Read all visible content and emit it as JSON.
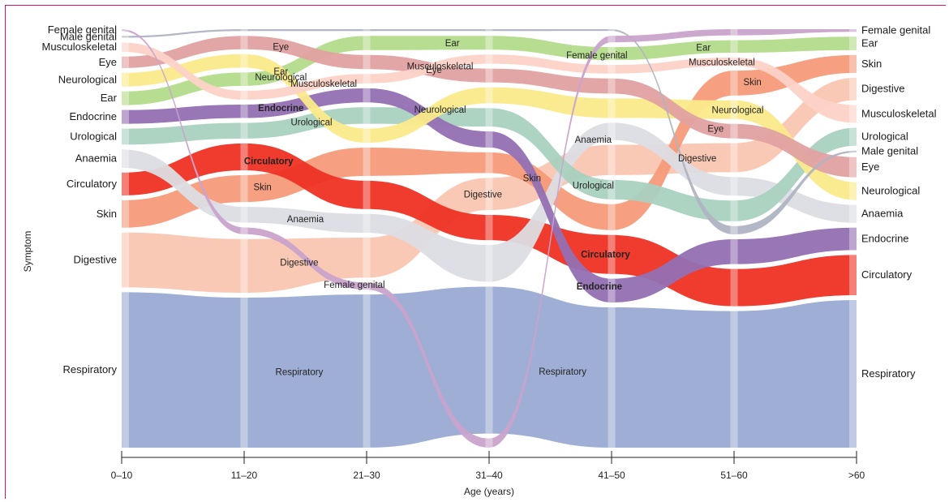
{
  "chart_data": {
    "type": "alluvial",
    "xlabel": "Age (years)",
    "ylabel": "Symptom",
    "categories": [
      "0–10",
      "11–20",
      "21–30",
      "31–40",
      "41–50",
      "51–60",
      ">60"
    ],
    "series": [
      {
        "name": "Respiratory",
        "color": "#9aaad3",
        "share": [
          0.34,
          0.335,
          0.325,
          0.32,
          0.325,
          0.33,
          0.33
        ],
        "rank": [
          13,
          13,
          13,
          13,
          13,
          13,
          13
        ]
      },
      {
        "name": "Digestive",
        "color": "#f9c6b1",
        "share": [
          0.12,
          0.12,
          0.085,
          0.07,
          0.07,
          0.07,
          0.05
        ],
        "rank": [
          12,
          12,
          11,
          10,
          8,
          7,
          4
        ]
      },
      {
        "name": "Skin",
        "color": "#f59b7a",
        "share": [
          0.06,
          0.06,
          0.06,
          0.045,
          0.06,
          0.06,
          0.04
        ],
        "rank": [
          11,
          8,
          8,
          9,
          10,
          4,
          3
        ]
      },
      {
        "name": "Circulatory",
        "color": "#ee3124",
        "share": [
          0.05,
          0.06,
          0.06,
          0.055,
          0.09,
          0.09,
          0.09
        ],
        "rank": [
          10,
          7,
          9,
          11,
          11,
          12,
          12
        ]
      },
      {
        "name": "Anaemia",
        "color": "#dcdde3",
        "share": [
          0.04,
          0.035,
          0.04,
          0.08,
          0.04,
          0.045,
          0.04
        ],
        "rank": [
          9,
          10,
          10,
          12,
          7,
          8,
          10
        ]
      },
      {
        "name": "Urological",
        "color": "#a9d1bf",
        "share": [
          0.035,
          0.035,
          0.035,
          0.04,
          0.045,
          0.05,
          0.04
        ],
        "rank": [
          8,
          6,
          6,
          7,
          9,
          9,
          6
        ]
      },
      {
        "name": "Endocrine",
        "color": "#9470b3",
        "share": [
          0.03,
          0.03,
          0.03,
          0.035,
          0.055,
          0.06,
          0.05
        ],
        "rank": [
          7,
          5,
          5,
          8,
          12,
          11,
          11
        ]
      },
      {
        "name": "Ear",
        "color": "#b3db8b",
        "share": [
          0.03,
          0.03,
          0.03,
          0.03,
          0.03,
          0.03,
          0.03
        ],
        "rank": [
          6,
          3,
          2,
          2,
          3,
          2,
          2
        ]
      },
      {
        "name": "Neurological",
        "color": "#fbea8a",
        "share": [
          0.03,
          0.03,
          0.03,
          0.035,
          0.045,
          0.045,
          0.04
        ],
        "rank": [
          5,
          2,
          7,
          6,
          6,
          5,
          9
        ]
      },
      {
        "name": "Eye",
        "color": "#e2a1a1",
        "share": [
          0.025,
          0.03,
          0.03,
          0.03,
          0.035,
          0.035,
          0.045
        ],
        "rank": [
          4,
          1,
          3,
          4,
          5,
          6,
          8
        ]
      },
      {
        "name": "Musculoskeletal",
        "color": "#fcd2c7",
        "share": [
          0.02,
          0.02,
          0.02,
          0.02,
          0.02,
          0.02,
          0.04
        ],
        "rank": [
          3,
          4,
          4,
          3,
          4,
          3,
          5
        ]
      },
      {
        "name": "Male genital",
        "color": "#b0b3c2",
        "share": [
          0.004,
          0.004,
          0.004,
          0.004,
          0.004,
          0.02,
          0.004
        ],
        "rank": [
          2,
          0,
          0,
          0,
          0,
          10,
          7
        ]
      },
      {
        "name": "Female genital",
        "color": "#c9a3cc",
        "share": [
          0.004,
          0.015,
          0.015,
          0.02,
          0.015,
          0.015,
          0.006
        ],
        "rank": [
          1,
          11,
          12,
          14,
          2,
          1,
          1
        ]
      }
    ],
    "flow_labels": [
      {
        "text": "Eye",
        "series": "Eye",
        "t": 1.3
      },
      {
        "text": "Neurological",
        "series": "Neurological",
        "t": 1.3
      },
      {
        "text": "Ear",
        "series": "Ear",
        "t": 1.3
      },
      {
        "text": "Musculoskeletal",
        "series": "Musculoskeletal",
        "t": 1.65
      },
      {
        "text": "Endocrine",
        "series": "Endocrine",
        "t": 1.3
      },
      {
        "text": "Urological",
        "series": "Urological",
        "t": 1.55
      },
      {
        "text": "Circulatory",
        "series": "Circulatory",
        "t": 1.2
      },
      {
        "text": "Skin",
        "series": "Skin",
        "t": 1.15
      },
      {
        "text": "Anaemia",
        "series": "Anaemia",
        "t": 1.5
      },
      {
        "text": "Female genital",
        "series": "Female genital",
        "t": 1.9
      },
      {
        "text": "Digestive",
        "series": "Digestive",
        "t": 1.45
      },
      {
        "text": "Ear",
        "series": "Ear",
        "t": 2.7
      },
      {
        "text": "Eye",
        "series": "Eye",
        "t": 2.55
      },
      {
        "text": "Musculoskeletal",
        "series": "Musculoskeletal",
        "t": 2.6
      },
      {
        "text": "Neurological",
        "series": "Neurological",
        "t": 2.6
      },
      {
        "text": "Digestive",
        "series": "Digestive",
        "t": 2.95
      },
      {
        "text": "Skin",
        "series": "Skin",
        "t": 3.35
      },
      {
        "text": "Female genital",
        "series": "Female genital",
        "t": 3.88
      },
      {
        "text": "Anaemia",
        "series": "Anaemia",
        "t": 3.85
      },
      {
        "text": "Urological",
        "series": "Urological",
        "t": 3.85
      },
      {
        "text": "Circulatory",
        "series": "Circulatory",
        "t": 3.95
      },
      {
        "text": "Endocrine",
        "series": "Endocrine",
        "t": 3.9
      },
      {
        "text": "Ear",
        "series": "Ear",
        "t": 4.75
      },
      {
        "text": "Musculoskeletal",
        "series": "Musculoskeletal",
        "t": 4.9
      },
      {
        "text": "Skin",
        "series": "Skin",
        "t": 5.15
      },
      {
        "text": "Eye",
        "series": "Eye",
        "t": 4.85
      },
      {
        "text": "Neurological",
        "series": "Neurological",
        "t": 5.03
      },
      {
        "text": "Digestive",
        "series": "Digestive",
        "t": 4.7
      },
      {
        "text": "Respiratory",
        "series": "Respiratory",
        "t": 1.45
      },
      {
        "text": "Respiratory",
        "series": "Respiratory",
        "t": 3.6
      }
    ]
  }
}
